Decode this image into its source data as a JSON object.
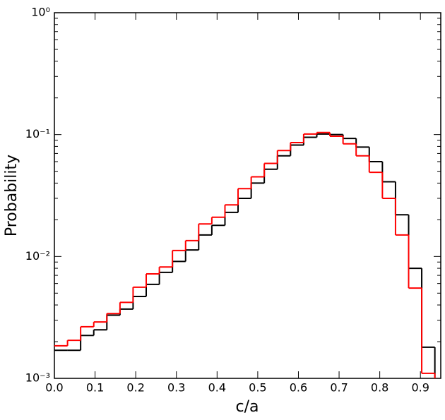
{
  "chart_data": {
    "type": "step-histogram",
    "xlabel": "c/a",
    "ylabel": "Probability",
    "yscale": "log",
    "bins": [
      0,
      0.0323,
      0.0645,
      0.0968,
      0.129,
      0.1613,
      0.1935,
      0.2258,
      0.2581,
      0.2903,
      0.3226,
      0.3548,
      0.3871,
      0.4194,
      0.4516,
      0.4839,
      0.5161,
      0.5484,
      0.5806,
      0.6129,
      0.6452,
      0.6774,
      0.7097,
      0.7419,
      0.7742,
      0.8065,
      0.8387,
      0.871,
      0.9032,
      0.9355
    ],
    "series": [
      {
        "color": "#000000",
        "values": [
          0.0017,
          0.0017,
          0.00225,
          0.0025,
          0.0033,
          0.0037,
          0.0047,
          0.0059,
          0.0074,
          0.0091,
          0.0113,
          0.015,
          0.018,
          0.023,
          0.03,
          0.04,
          0.052,
          0.067,
          0.082,
          0.095,
          0.101,
          0.1,
          0.093,
          0.079,
          0.06,
          0.041,
          0.022,
          0.008,
          0.0018
        ]
      },
      {
        "color": "#ff0000",
        "values": [
          0.00185,
          0.00205,
          0.00265,
          0.0029,
          0.0034,
          0.0042,
          0.0056,
          0.0072,
          0.0082,
          0.0112,
          0.0135,
          0.0185,
          0.021,
          0.0265,
          0.036,
          0.045,
          0.058,
          0.074,
          0.086,
          0.101,
          0.104,
          0.097,
          0.084,
          0.067,
          0.049,
          0.03,
          0.015,
          0.0055,
          0.0011
        ]
      }
    ],
    "xlim": [
      0,
      0.95
    ],
    "xticks": [
      {
        "value": 0,
        "label": "0.0"
      },
      0.1,
      0.2,
      0.3,
      0.4,
      0.5,
      0.6,
      0.7,
      0.8,
      0.9
    ],
    "ylim": [
      0.001,
      1
    ],
    "yticks": [
      {
        "value": 0.001,
        "label": "10⁻³"
      },
      {
        "value": 0.01,
        "label": "10⁻²"
      },
      {
        "value": 0.1,
        "label": "10⁻¹"
      },
      {
        "value": 1,
        "label": "10⁰"
      }
    ]
  }
}
